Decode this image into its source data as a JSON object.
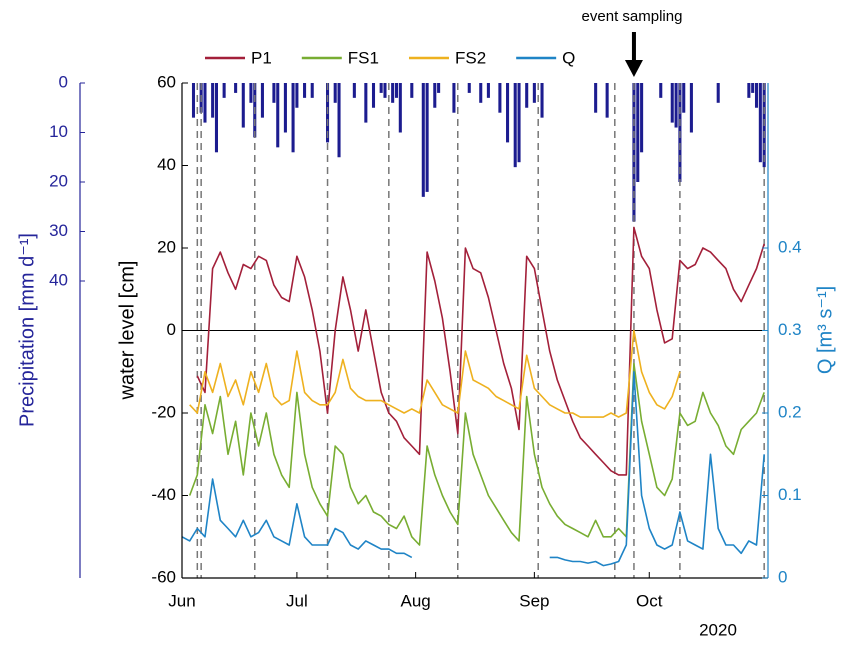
{
  "chart_data": {
    "type": "line",
    "annotation": {
      "text": "event sampling",
      "x": "2020-09-27"
    },
    "x": [
      "2020-06-01",
      "2020-06-03",
      "2020-06-05",
      "2020-06-07",
      "2020-06-09",
      "2020-06-11",
      "2020-06-13",
      "2020-06-15",
      "2020-06-17",
      "2020-06-19",
      "2020-06-21",
      "2020-06-23",
      "2020-06-25",
      "2020-06-27",
      "2020-06-29",
      "2020-07-01",
      "2020-07-03",
      "2020-07-05",
      "2020-07-07",
      "2020-07-09",
      "2020-07-11",
      "2020-07-13",
      "2020-07-15",
      "2020-07-17",
      "2020-07-19",
      "2020-07-21",
      "2020-07-23",
      "2020-07-25",
      "2020-07-27",
      "2020-07-29",
      "2020-07-31",
      "2020-08-02",
      "2020-08-04",
      "2020-08-06",
      "2020-08-08",
      "2020-08-10",
      "2020-08-12",
      "2020-08-14",
      "2020-08-16",
      "2020-08-18",
      "2020-08-20",
      "2020-08-22",
      "2020-08-24",
      "2020-08-26",
      "2020-08-28",
      "2020-08-30",
      "2020-09-01",
      "2020-09-03",
      "2020-09-05",
      "2020-09-07",
      "2020-09-09",
      "2020-09-11",
      "2020-09-13",
      "2020-09-15",
      "2020-09-17",
      "2020-09-19",
      "2020-09-21",
      "2020-09-23",
      "2020-09-25",
      "2020-09-27",
      "2020-09-29",
      "2020-10-01",
      "2020-10-03",
      "2020-10-05",
      "2020-10-07",
      "2020-10-09",
      "2020-10-11",
      "2020-10-13",
      "2020-10-15",
      "2020-10-17",
      "2020-10-19",
      "2020-10-21",
      "2020-10-23",
      "2020-10-25",
      "2020-10-27",
      "2020-10-29",
      "2020-10-31"
    ],
    "series": [
      {
        "name": "P1",
        "color": "#a3203a",
        "axis": "y",
        "values": [
          null,
          null,
          -11,
          -15,
          15,
          19,
          14,
          10,
          16,
          15,
          18,
          17,
          11,
          8,
          7,
          18,
          13,
          5,
          -5,
          -20,
          0,
          13,
          5,
          -5,
          5,
          -5,
          -15,
          -20,
          -22,
          -26,
          -28,
          -30,
          19,
          12,
          3,
          -10,
          -25,
          20,
          15,
          14,
          8,
          0,
          -8,
          -14,
          -24,
          18,
          15,
          5,
          -5,
          -12,
          -17,
          -22,
          -26,
          -28,
          -30,
          -32,
          -34,
          -35,
          -35,
          25,
          18,
          15,
          5,
          -3,
          -2,
          17,
          15,
          16,
          20,
          19,
          17,
          15,
          10,
          7,
          11,
          15,
          21
        ]
      },
      {
        "name": "FS1",
        "color": "#78ad32",
        "axis": "y",
        "values": [
          null,
          -40,
          -35,
          -18,
          -25,
          -16,
          -30,
          -22,
          -35,
          -20,
          -28,
          -20,
          -30,
          -35,
          -38,
          -15,
          -30,
          -38,
          -42,
          -45,
          -28,
          -30,
          -38,
          -42,
          -40,
          -44,
          -45,
          -47,
          -48,
          -45,
          -50,
          -52,
          -28,
          -35,
          -40,
          -44,
          -47,
          -20,
          -30,
          -35,
          -40,
          -43,
          -46,
          -49,
          -51,
          -16,
          -30,
          -38,
          -42,
          -45,
          -47,
          -48,
          -49,
          -50,
          -46,
          -50,
          -50,
          -48,
          -50,
          -8,
          -22,
          -30,
          -38,
          -40,
          -36,
          -20,
          -23,
          -22,
          -15,
          -20,
          -23,
          -28,
          -30,
          -24,
          -22,
          -20,
          -15
        ]
      },
      {
        "name": "FS2",
        "color": "#eeb11f",
        "axis": "y",
        "values": [
          null,
          -18,
          -20,
          -10,
          -15,
          -8,
          -16,
          -12,
          -18,
          -10,
          -15,
          -8,
          -16,
          -18,
          -17,
          -5,
          -15,
          -17,
          -18,
          -18,
          -15,
          -7,
          -14,
          -16,
          -17,
          -17,
          -17,
          -18,
          -19,
          -20,
          -19,
          -20,
          -12,
          -15,
          -18,
          -19,
          -20,
          -5,
          -12,
          -13,
          -14,
          -16,
          -17,
          -18,
          -19,
          -6,
          -14,
          -16,
          -18,
          -19,
          -20,
          -20,
          -21,
          -21,
          -21,
          -21,
          -20,
          -21,
          -20,
          0,
          -10,
          -15,
          -18,
          -19,
          -16,
          -10,
          null,
          null,
          null,
          null,
          null,
          null,
          null,
          null,
          null,
          null,
          null
        ]
      },
      {
        "name": "Q",
        "color": "#1f84c6",
        "axis": "y2",
        "values": [
          0.05,
          0.045,
          0.06,
          0.05,
          0.12,
          0.07,
          0.06,
          0.05,
          0.07,
          0.05,
          0.055,
          0.07,
          0.05,
          0.045,
          0.04,
          0.09,
          0.05,
          0.04,
          0.04,
          0.04,
          0.06,
          0.055,
          0.04,
          0.035,
          0.045,
          0.04,
          0.035,
          0.035,
          0.03,
          0.03,
          0.025,
          null,
          null,
          null,
          null,
          null,
          null,
          null,
          null,
          null,
          null,
          null,
          null,
          null,
          null,
          null,
          null,
          null,
          0.025,
          0.025,
          0.022,
          0.02,
          0.02,
          0.018,
          0.02,
          0.015,
          0.017,
          0.02,
          0.04,
          0.25,
          0.1,
          0.06,
          0.04,
          0.035,
          0.04,
          0.08,
          0.045,
          0.04,
          0.035,
          0.15,
          0.06,
          0.04,
          0.04,
          0.03,
          0.045,
          0.04,
          0.15
        ]
      }
    ],
    "precipitation": {
      "color": "#1c1c8f",
      "axis_color": "#25259a",
      "x": [
        "2020-06-04",
        "2020-06-06",
        "2020-06-07",
        "2020-06-09",
        "2020-06-10",
        "2020-06-12",
        "2020-06-15",
        "2020-06-17",
        "2020-06-19",
        "2020-06-20",
        "2020-06-22",
        "2020-06-25",
        "2020-06-26",
        "2020-06-28",
        "2020-06-30",
        "2020-07-01",
        "2020-07-03",
        "2020-07-05",
        "2020-07-09",
        "2020-07-11",
        "2020-07-12",
        "2020-07-16",
        "2020-07-19",
        "2020-07-21",
        "2020-07-23",
        "2020-07-24",
        "2020-07-26",
        "2020-07-27",
        "2020-07-28",
        "2020-07-31",
        "2020-08-03",
        "2020-08-04",
        "2020-08-06",
        "2020-08-07",
        "2020-08-11",
        "2020-08-15",
        "2020-08-18",
        "2020-08-20",
        "2020-08-23",
        "2020-08-25",
        "2020-08-27",
        "2020-08-28",
        "2020-08-30",
        "2020-09-01",
        "2020-09-03",
        "2020-09-17",
        "2020-09-20",
        "2020-09-27",
        "2020-09-28",
        "2020-09-29",
        "2020-10-04",
        "2020-10-07",
        "2020-10-08",
        "2020-10-09",
        "2020-10-10",
        "2020-10-12",
        "2020-10-19",
        "2020-10-27",
        "2020-10-28",
        "2020-10-29",
        "2020-10-30",
        "2020-10-31"
      ],
      "values": [
        7,
        6,
        8,
        7,
        14,
        3,
        2,
        9,
        4,
        11,
        7,
        4,
        13,
        10,
        14,
        5,
        3,
        3,
        12,
        4,
        15,
        3,
        8,
        5,
        2,
        3,
        4,
        3,
        10,
        3,
        23,
        22,
        5,
        2,
        6,
        2,
        4,
        3,
        6,
        12,
        17,
        16,
        5,
        4,
        7,
        6,
        7,
        28,
        20,
        14,
        3,
        8,
        9,
        20,
        6,
        10,
        4,
        3,
        2,
        5,
        16,
        17
      ]
    },
    "sampling_dates": [
      "2020-06-05",
      "2020-06-06",
      "2020-06-20",
      "2020-07-09",
      "2020-07-25",
      "2020-08-12",
      "2020-09-02",
      "2020-09-22",
      "2020-09-27",
      "2020-10-09",
      "2020-10-31"
    ],
    "xlim": [
      "2020-06-01",
      "2020-11-01"
    ],
    "xticks": [
      {
        "value": "2020-06-01",
        "label": "Jun"
      },
      {
        "value": "2020-07-01",
        "label": "Jul"
      },
      {
        "value": "2020-08-01",
        "label": "Aug"
      },
      {
        "value": "2020-09-01",
        "label": "Sep"
      },
      {
        "value": "2020-10-01",
        "label": "Oct"
      }
    ],
    "x_year_label": "2020",
    "ylabel": "water level [cm]",
    "ylim": [
      -60,
      60
    ],
    "yticks": [
      -60,
      -40,
      -20,
      0,
      20,
      40,
      60
    ],
    "y2label": "Q [m³ s⁻¹]",
    "y2lim": [
      0,
      0.6
    ],
    "y2ticks": [
      0,
      0.1,
      0.2,
      0.3,
      0.4
    ],
    "y2color": "#1f84c6",
    "y3label": "Precipitation [mm d⁻¹]",
    "y3lim": [
      0,
      100
    ],
    "y3ticks": [
      0,
      10,
      20,
      30,
      40
    ],
    "y3reversed": true
  }
}
